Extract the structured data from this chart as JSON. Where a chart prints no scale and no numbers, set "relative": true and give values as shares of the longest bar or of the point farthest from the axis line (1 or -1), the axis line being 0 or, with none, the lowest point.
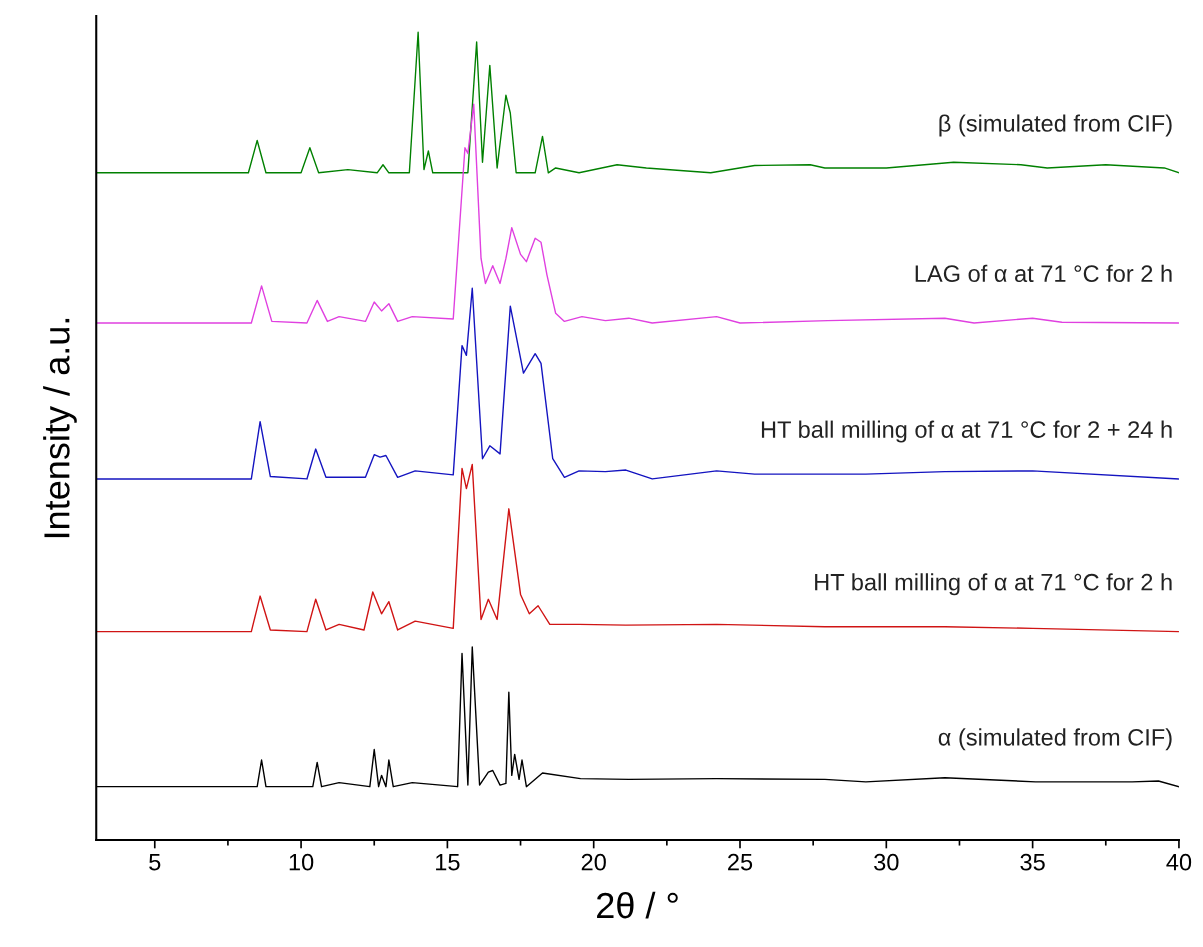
{
  "chart_data": {
    "type": "line",
    "relative": true,
    "xlabel": "2θ / °",
    "ylabel": "Intensity / a.u.",
    "xlim": [
      3,
      40
    ],
    "xticks": [
      5,
      10,
      15,
      20,
      25,
      30,
      35,
      40
    ],
    "grid": false,
    "legend": false,
    "marker": "none",
    "line_style": "solid",
    "series": [
      {
        "name": "β (simulated from CIF)",
        "color": "#008000",
        "x": [
          3,
          8.2,
          8.5,
          8.8,
          10.0,
          10.3,
          10.6,
          11.6,
          12.6,
          12.8,
          13.0,
          13.7,
          14.0,
          14.2,
          14.35,
          14.5,
          15.7,
          16.0,
          16.2,
          16.45,
          16.7,
          17.0,
          17.15,
          17.35,
          18.0,
          18.25,
          18.45,
          18.7,
          19.5,
          20.8,
          21.8,
          24.0,
          25.5,
          27.4,
          27.9,
          30.0,
          32.3,
          34.6,
          35.5,
          37.5,
          39.5,
          40
        ],
        "values": [
          0.826,
          0.826,
          0.866,
          0.826,
          0.826,
          0.857,
          0.826,
          0.83,
          0.826,
          0.836,
          0.826,
          0.826,
          1.0,
          0.83,
          0.853,
          0.826,
          0.826,
          0.988,
          0.839,
          0.959,
          0.832,
          0.922,
          0.9,
          0.826,
          0.826,
          0.871,
          0.826,
          0.832,
          0.826,
          0.836,
          0.832,
          0.826,
          0.835,
          0.836,
          0.832,
          0.832,
          0.839,
          0.836,
          0.832,
          0.836,
          0.832,
          0.826
        ]
      },
      {
        "name": "LAG of α at 71 °C for 2 h",
        "color": "#e040e0",
        "x": [
          3,
          8.3,
          8.65,
          9.0,
          10.2,
          10.55,
          10.9,
          11.3,
          12.2,
          12.5,
          12.75,
          13.0,
          13.3,
          13.8,
          15.2,
          15.6,
          15.7,
          15.9,
          16.15,
          16.3,
          16.55,
          16.8,
          17.0,
          17.2,
          17.5,
          17.7,
          18.0,
          18.2,
          18.4,
          18.7,
          19.0,
          19.6,
          20.4,
          21.2,
          22,
          24.2,
          25,
          28,
          32,
          33,
          35,
          36,
          40
        ],
        "values": [
          0.64,
          0.64,
          0.686,
          0.642,
          0.64,
          0.668,
          0.642,
          0.648,
          0.642,
          0.666,
          0.655,
          0.664,
          0.642,
          0.648,
          0.645,
          0.857,
          0.85,
          0.911,
          0.72,
          0.689,
          0.711,
          0.689,
          0.72,
          0.758,
          0.725,
          0.716,
          0.745,
          0.74,
          0.7,
          0.652,
          0.642,
          0.648,
          0.643,
          0.646,
          0.64,
          0.648,
          0.64,
          0.643,
          0.646,
          0.64,
          0.646,
          0.641,
          0.64
        ]
      },
      {
        "name": "HT ball milling of α at 71 °C for 2 + 24 h",
        "color": "#1414c0",
        "x": [
          3,
          8.3,
          8.6,
          8.95,
          10.2,
          10.5,
          10.85,
          12.2,
          12.5,
          12.7,
          12.9,
          13.3,
          13.9,
          15.2,
          15.5,
          15.65,
          15.85,
          16.2,
          16.45,
          16.8,
          17.15,
          17.6,
          18.0,
          18.2,
          18.6,
          19.0,
          19.5,
          20.4,
          21.1,
          22,
          24.2,
          25.5,
          29.3,
          32,
          35,
          40
        ],
        "values": [
          0.447,
          0.447,
          0.518,
          0.45,
          0.447,
          0.484,
          0.449,
          0.449,
          0.477,
          0.474,
          0.476,
          0.449,
          0.457,
          0.452,
          0.612,
          0.6,
          0.683,
          0.472,
          0.488,
          0.478,
          0.661,
          0.578,
          0.602,
          0.59,
          0.472,
          0.449,
          0.457,
          0.456,
          0.458,
          0.447,
          0.457,
          0.453,
          0.453,
          0.456,
          0.457,
          0.447
        ]
      },
      {
        "name": "HT ball milling of α at 71 °C for 2 h",
        "color": "#d01414",
        "x": [
          3,
          8.3,
          8.6,
          8.95,
          10.2,
          10.5,
          10.85,
          11.3,
          12.15,
          12.45,
          12.75,
          13.0,
          13.3,
          13.9,
          15.2,
          15.5,
          15.65,
          15.85,
          16.15,
          16.4,
          16.7,
          17.1,
          17.5,
          17.8,
          18.1,
          18.5,
          19.5,
          21.1,
          24.2,
          27.9,
          32,
          35,
          40
        ],
        "values": [
          0.258,
          0.258,
          0.302,
          0.26,
          0.258,
          0.298,
          0.26,
          0.267,
          0.26,
          0.307,
          0.28,
          0.295,
          0.26,
          0.271,
          0.262,
          0.46,
          0.435,
          0.465,
          0.273,
          0.298,
          0.273,
          0.41,
          0.304,
          0.28,
          0.29,
          0.267,
          0.267,
          0.266,
          0.267,
          0.264,
          0.264,
          0.262,
          0.258
        ]
      },
      {
        "name": "α (simulated from CIF)",
        "color": "#000000",
        "x": [
          3,
          8.5,
          8.65,
          8.8,
          10.4,
          10.55,
          10.7,
          11.3,
          12.35,
          12.5,
          12.65,
          12.75,
          12.9,
          13.0,
          13.15,
          13.8,
          15.35,
          15.5,
          15.7,
          15.85,
          16.1,
          16.4,
          16.55,
          16.8,
          17.0,
          17.1,
          17.2,
          17.3,
          17.45,
          17.55,
          17.7,
          18.25,
          19.55,
          21.2,
          24.2,
          27.9,
          29.3,
          32,
          35.1,
          38.4,
          39.3,
          40
        ],
        "values": [
          0.066,
          0.066,
          0.099,
          0.066,
          0.066,
          0.096,
          0.066,
          0.071,
          0.066,
          0.112,
          0.066,
          0.08,
          0.066,
          0.099,
          0.066,
          0.071,
          0.066,
          0.231,
          0.068,
          0.239,
          0.068,
          0.084,
          0.086,
          0.068,
          0.07,
          0.183,
          0.08,
          0.106,
          0.075,
          0.099,
          0.066,
          0.083,
          0.076,
          0.075,
          0.076,
          0.075,
          0.072,
          0.077,
          0.072,
          0.072,
          0.073,
          0.066
        ]
      }
    ]
  }
}
